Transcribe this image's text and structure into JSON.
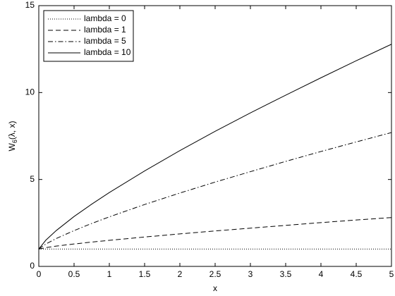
{
  "chart_data": {
    "type": "line",
    "xlabel": "x",
    "ylabel": {
      "main": "W",
      "sub": "6",
      "rest": "(λ, x)"
    },
    "x": [
      0,
      0.1,
      0.25,
      0.5,
      0.75,
      1,
      1.5,
      2,
      2.5,
      3,
      3.5,
      4,
      4.5,
      5
    ],
    "series": [
      {
        "name": "lambda = 0",
        "color": "#000000",
        "dash": "1 2",
        "values": [
          1,
          1,
          1,
          1,
          1,
          1,
          1,
          1,
          1,
          1,
          1,
          1,
          1,
          1
        ]
      },
      {
        "name": "lambda = 1",
        "color": "#000000",
        "dash": "7 4",
        "values": [
          1,
          1.08,
          1.17,
          1.29,
          1.4,
          1.5,
          1.69,
          1.87,
          2.04,
          2.2,
          2.36,
          2.52,
          2.67,
          2.81
        ]
      },
      {
        "name": "lambda = 5",
        "color": "#000000",
        "dash": "7 3 1.5 3",
        "values": [
          1,
          1.29,
          1.61,
          2.06,
          2.47,
          2.85,
          3.56,
          4.22,
          4.85,
          5.45,
          6.04,
          6.61,
          7.16,
          7.7
        ]
      },
      {
        "name": "lambda = 10",
        "color": "#000000",
        "dash": "none",
        "values": [
          1,
          1.51,
          2.07,
          2.87,
          3.58,
          4.25,
          5.49,
          6.66,
          7.77,
          8.83,
          9.85,
          10.85,
          11.83,
          12.78
        ]
      }
    ],
    "xlim": [
      0,
      5
    ],
    "ylim": [
      0,
      15
    ],
    "xticks": [
      0,
      0.5,
      1,
      1.5,
      2,
      2.5,
      3,
      3.5,
      4,
      4.5,
      5
    ],
    "yticks": [
      0,
      5,
      10,
      15
    ],
    "legend": "upper-left"
  }
}
